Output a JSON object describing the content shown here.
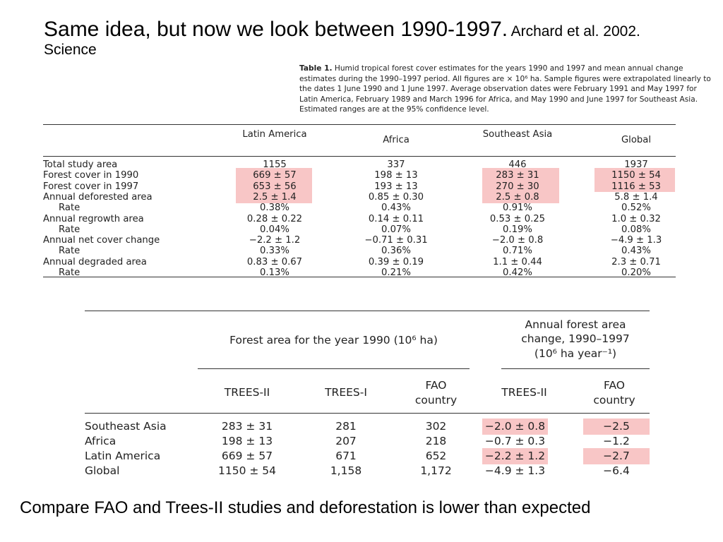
{
  "title": {
    "main": "Same idea, but now we look between 1990-1997.",
    "cite": "Archard et al. 2002. Science"
  },
  "table1": {
    "caption_label": "Table 1.",
    "caption_text": "Humid tropical forest cover estimates for the years 1990 and 1997 and mean annual change estimates during the 1990–1997 period. All figures are × 10⁶ ha. Sample figures were extrapolated linearly to the dates 1 June 1990 and 1 June 1997. Average observation dates were February 1991 and May 1997 for Latin America, February 1989 and March 1996 for Africa, and May 1990 and June 1997 for Southeast Asia. Estimated ranges are at the 95% confidence level.",
    "columns": [
      "Latin America",
      "Africa",
      "Southeast Asia",
      "Global"
    ],
    "rows": [
      {
        "label": "Total study area",
        "sub": false,
        "values": [
          "1155",
          "337",
          "446",
          "1937"
        ]
      },
      {
        "label": "Forest cover in 1990",
        "sub": false,
        "values": [
          "669 ± 57",
          "198 ± 13",
          "283 ± 31",
          "1150 ± 54"
        ]
      },
      {
        "label": "Forest cover in 1997",
        "sub": false,
        "values": [
          "653 ± 56",
          "193 ± 13",
          "270 ± 30",
          "1116 ± 53"
        ]
      },
      {
        "label": "Annual deforested area",
        "sub": false,
        "values": [
          "2.5 ± 1.4",
          "0.85 ± 0.30",
          "2.5 ± 0.8",
          "5.8 ± 1.4"
        ]
      },
      {
        "label": "Rate",
        "sub": true,
        "values": [
          "0.38%",
          "0.43%",
          "0.91%",
          "0.52%"
        ]
      },
      {
        "label": "Annual regrowth area",
        "sub": false,
        "values": [
          "0.28 ± 0.22",
          "0.14 ± 0.11",
          "0.53 ± 0.25",
          "1.0 ± 0.32"
        ]
      },
      {
        "label": "Rate",
        "sub": true,
        "values": [
          "0.04%",
          "0.07%",
          "0.19%",
          "0.08%"
        ]
      },
      {
        "label": "Annual net cover change",
        "sub": false,
        "values": [
          "−2.2 ± 1.2",
          "−0.71 ± 0.31",
          "−2.0 ± 0.8",
          "−4.9 ± 1.3"
        ]
      },
      {
        "label": "Rate",
        "sub": true,
        "values": [
          "0.33%",
          "0.36%",
          "0.71%",
          "0.43%"
        ]
      },
      {
        "label": "Annual degraded area",
        "sub": false,
        "values": [
          "0.83 ± 0.67",
          "0.39 ± 0.19",
          "1.1 ± 0.44",
          "2.3 ± 0.71"
        ]
      },
      {
        "label": "Rate",
        "sub": true,
        "values": [
          "0.13%",
          "0.21%",
          "0.42%",
          "0.20%"
        ]
      }
    ]
  },
  "table2": {
    "group1_header": "Forest area for the year 1990 (10⁶ ha)",
    "group2_header_l1": "Annual forest area",
    "group2_header_l2": "change, 1990–1997",
    "group2_header_l3": "(10⁶ ha year⁻¹)",
    "col_trees2": "TREES-II",
    "col_trees1": "TREES-I",
    "col_fao_l1": "FAO",
    "col_fao_l2": "country",
    "col_change_trees2": "TREES-II",
    "col_change_fao_l1": "FAO",
    "col_change_fao_l2": "country",
    "rows": [
      {
        "label": "Southeast Asia",
        "values": [
          "283 ± 31",
          "281",
          "302",
          "−2.0 ± 0.8",
          "−2.5"
        ]
      },
      {
        "label": "Africa",
        "values": [
          "198 ± 13",
          "207",
          "218",
          "−0.7 ± 0.3",
          "−1.2"
        ]
      },
      {
        "label": "Latin America",
        "values": [
          "669 ± 57",
          "671",
          "652",
          "−2.2 ± 1.2",
          "−2.7"
        ]
      },
      {
        "label": "Global",
        "values": [
          "1150 ± 54",
          "1,158",
          "1,172",
          "−4.9 ± 1.3",
          "−6.4"
        ]
      }
    ]
  },
  "bottom_text": "Compare FAO and Trees-II studies and deforestation is lower than expected",
  "highlight_color": "#f8c6c6"
}
